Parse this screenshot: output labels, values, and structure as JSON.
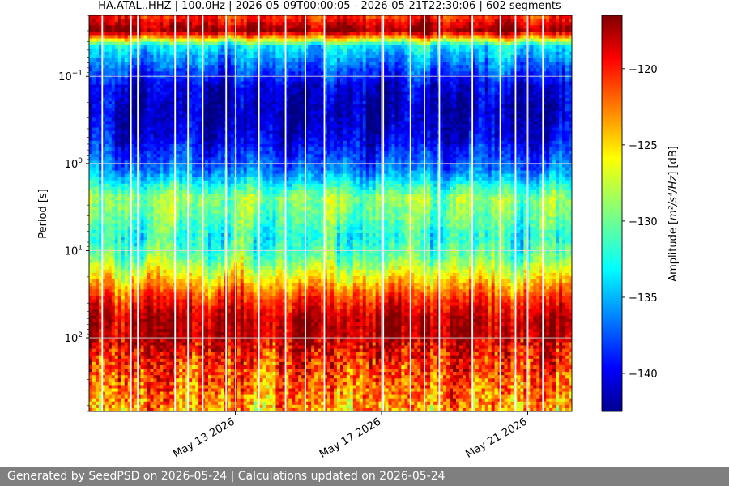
{
  "chart_data": {
    "type": "heatmap",
    "title": "HA.ATAL..HHZ | 100.0Hz | 2026-05-09T00:00:05 - 2026-05-21T22:30:06 | 602 segments",
    "xlabel": "",
    "ylabel": "Period [s]",
    "y_scale": "log",
    "y_inverted": true,
    "ylim": [
      0.02,
      700
    ],
    "xlim": [
      "2026-05-09T00:00:05",
      "2026-05-22T05:00:00"
    ],
    "y_ticks": [
      {
        "value": 0.1,
        "base": "10",
        "exp": "−1"
      },
      {
        "value": 1,
        "base": "10",
        "exp": "0"
      },
      {
        "value": 10,
        "base": "10",
        "exp": "1"
      },
      {
        "value": 100,
        "base": "10",
        "exp": "2"
      }
    ],
    "x_ticks": [
      {
        "date": "2026-05-13",
        "label": "May 13 2026"
      },
      {
        "date": "2026-05-17",
        "label": "May 17 2026"
      },
      {
        "date": "2026-05-21",
        "label": "May 21 2026"
      }
    ],
    "grid": true,
    "colorbar": {
      "label_prefix": "Amplitude [",
      "label_unit": "m²/s⁴/Hz",
      "label_suffix": "] [dB]",
      "colormap": "jet",
      "range": [
        -142.5,
        -116.5
      ],
      "ticks": [
        -120,
        -125,
        -130,
        -135,
        -140
      ],
      "tick_labels": [
        "−120",
        "−125",
        "−130",
        "−135",
        "−140"
      ]
    },
    "profile": [
      {
        "period": 0.02,
        "db": -121
      },
      {
        "period": 0.03,
        "db": -117
      },
      {
        "period": 0.045,
        "db": -133
      },
      {
        "period": 0.07,
        "db": -136
      },
      {
        "period": 0.13,
        "db": -140
      },
      {
        "period": 0.25,
        "db": -141
      },
      {
        "period": 0.5,
        "db": -140
      },
      {
        "period": 1.2,
        "db": -136
      },
      {
        "period": 2.5,
        "db": -129
      },
      {
        "period": 4,
        "db": -130
      },
      {
        "period": 7,
        "db": -132
      },
      {
        "period": 12,
        "db": -130
      },
      {
        "period": 20,
        "db": -126
      },
      {
        "period": 35,
        "db": -121
      },
      {
        "period": 60,
        "db": -118
      },
      {
        "period": 100,
        "db": -118
      },
      {
        "period": 200,
        "db": -121
      },
      {
        "period": 700,
        "db": -124
      }
    ],
    "segments": 602,
    "data_gaps": [
      "2026-05-09T08:40",
      "2026-05-10T03:30",
      "2026-05-10T08:00",
      "2026-05-11T08:30",
      "2026-05-11T17:00",
      "2026-05-12T02:40",
      "2026-05-12T18:00",
      "2026-05-13T15:30",
      "2026-05-14T09:00",
      "2026-05-14T22:00",
      "2026-05-15T10:30",
      "2026-05-17T01:10",
      "2026-05-17T19:00",
      "2026-05-18T04:10",
      "2026-05-18T14:00",
      "2026-05-19T11:40",
      "2026-05-20T06:00",
      "2026-05-20T16:00",
      "2026-05-21T00:00",
      "2026-05-21T10:00"
    ]
  },
  "footer": {
    "text": "Generated by SeedPSD on 2026-05-24 | Calculations updated on 2026-05-24"
  }
}
